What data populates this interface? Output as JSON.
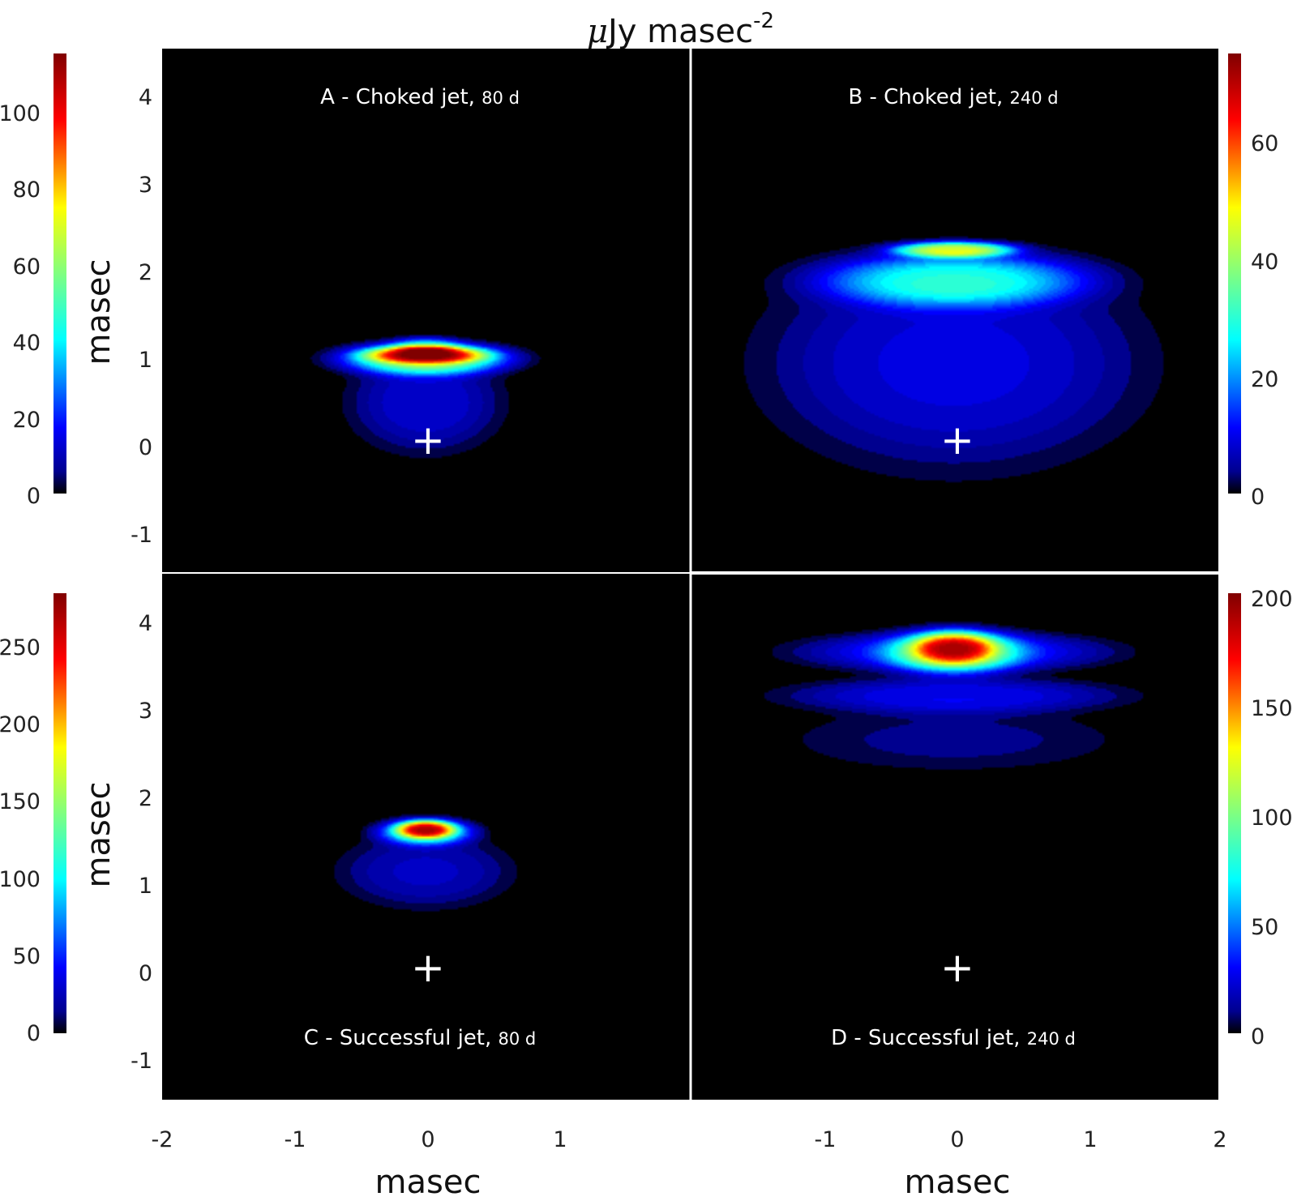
{
  "chart_data": {
    "type": "heatmap",
    "suptitle": {
      "prefix": "μ",
      "text": "Jy masec",
      "exponent": "-2"
    },
    "colormap": "jet",
    "background_color": "#000000",
    "divider_color": "#ffffff",
    "marker": {
      "symbol": "+",
      "x": 0,
      "y": 0,
      "color": "#ffffff"
    },
    "x_axis": {
      "label": "masec",
      "ticks_left": [
        "-2",
        "-1",
        "0",
        "1"
      ],
      "ticks_right": [
        "-1",
        "0",
        "1",
        "2"
      ],
      "range_left": [
        -2,
        2
      ],
      "range_right": [
        -2,
        2
      ]
    },
    "y_axis": {
      "label": "masec",
      "ticks": [
        "4",
        "3",
        "2",
        "1",
        "0",
        "-1"
      ],
      "range": [
        -1.5,
        4.5
      ]
    },
    "panels": [
      {
        "id": "A",
        "title": "A - Choked jet,",
        "time": "80 d",
        "colorbar": {
          "side": "left",
          "range": [
            0,
            115
          ],
          "ticks": [
            "100",
            "80",
            "60",
            "40",
            "20",
            "0"
          ]
        },
        "blobs": [
          {
            "x": 0,
            "y": 0.45,
            "sx": 0.55,
            "sy": 0.55,
            "amp": 14
          },
          {
            "x": 0,
            "y": 0.95,
            "sx": 0.62,
            "sy": 0.18,
            "amp": 55
          },
          {
            "x": 0,
            "y": 1.0,
            "sx": 0.45,
            "sy": 0.1,
            "amp": 60
          },
          {
            "x": 0,
            "y": 1.1,
            "sx": 0.25,
            "sy": 0.1,
            "amp": 20
          }
        ]
      },
      {
        "id": "B",
        "title": "B - Choked jet,",
        "time": "240 d",
        "colorbar": {
          "side": "right",
          "range": [
            0,
            75
          ],
          "ticks": [
            "60",
            "40",
            "20",
            "0"
          ]
        },
        "blobs": [
          {
            "x": 0,
            "y": 0.9,
            "sx": 1.35,
            "sy": 1.15,
            "amp": 10
          },
          {
            "x": 0,
            "y": 1.85,
            "sx": 1.0,
            "sy": 0.3,
            "amp": 25
          },
          {
            "x": 0,
            "y": 2.2,
            "sx": 0.45,
            "sy": 0.09,
            "amp": 40
          }
        ]
      },
      {
        "id": "C",
        "title": "C - Successful jet,",
        "time": "80 d",
        "colorbar": {
          "side": "left",
          "range": [
            0,
            285
          ],
          "ticks": [
            "250",
            "200",
            "150",
            "100",
            "50",
            "0"
          ]
        },
        "blobs": [
          {
            "x": 0,
            "y": 1.1,
            "sx": 0.62,
            "sy": 0.4,
            "amp": 30
          },
          {
            "x": 0,
            "y": 1.55,
            "sx": 0.35,
            "sy": 0.15,
            "amp": 110
          },
          {
            "x": 0,
            "y": 1.58,
            "sx": 0.22,
            "sy": 0.1,
            "amp": 160
          }
        ]
      },
      {
        "id": "D",
        "title": "D - Successful jet,",
        "time": "240 d",
        "colorbar": {
          "side": "right",
          "range": [
            0,
            205
          ],
          "ticks": [
            "200",
            "150",
            "100",
            "50",
            "0"
          ]
        },
        "blobs": [
          {
            "x": 0,
            "y": 2.6,
            "sx": 1.2,
            "sy": 0.35,
            "amp": 12
          },
          {
            "x": 0,
            "y": 3.1,
            "sx": 1.2,
            "sy": 0.2,
            "amp": 30
          },
          {
            "x": 0,
            "y": 3.6,
            "sx": 1.1,
            "sy": 0.22,
            "amp": 40
          },
          {
            "x": 0,
            "y": 3.6,
            "sx": 0.5,
            "sy": 0.25,
            "amp": 80
          },
          {
            "x": 0,
            "y": 3.65,
            "sx": 0.3,
            "sy": 0.18,
            "amp": 80
          }
        ]
      }
    ]
  }
}
